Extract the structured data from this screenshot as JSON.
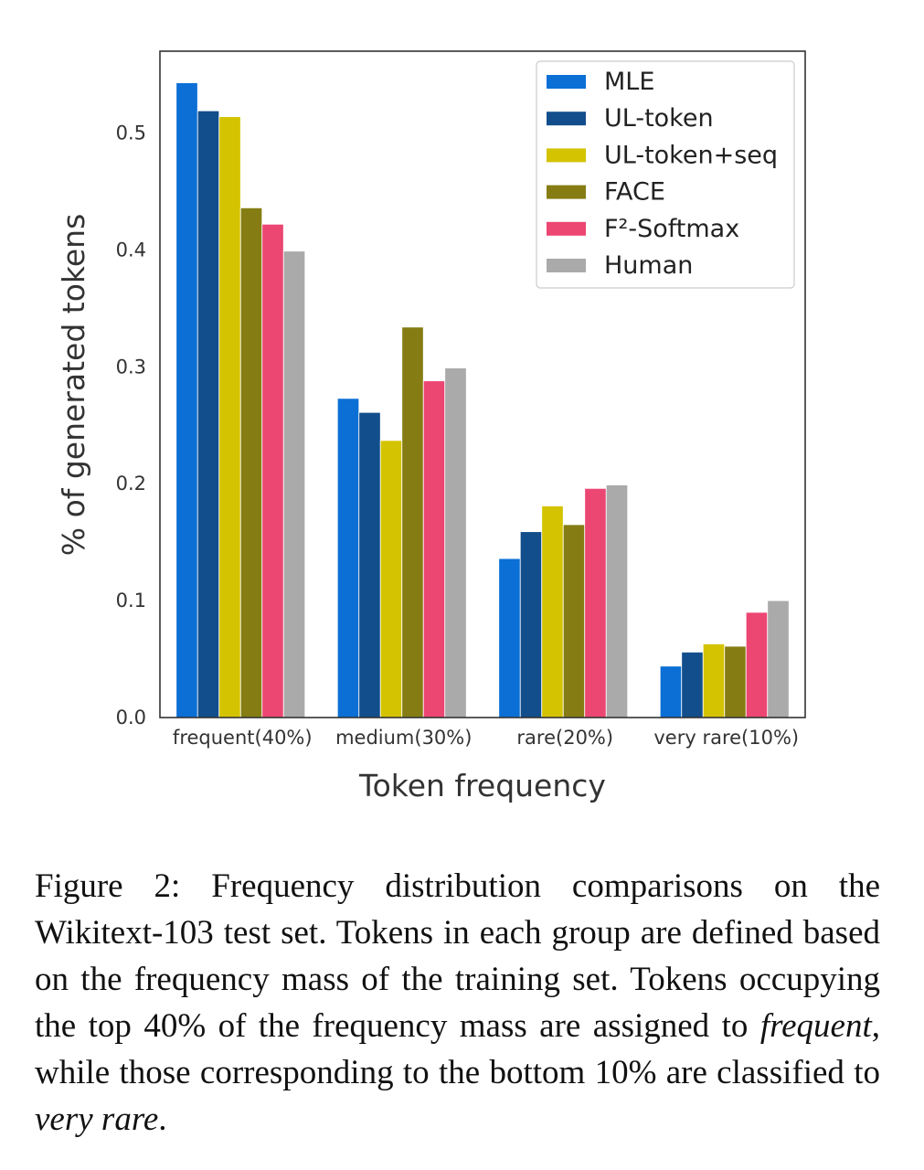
{
  "chart_data": {
    "type": "bar",
    "title": "",
    "xlabel": "Token frequency",
    "ylabel": "% of generated tokens",
    "categories": [
      "frequent(40%)",
      "medium(30%)",
      "rare(20%)",
      "very rare(10%)"
    ],
    "ylim": [
      0,
      0.57
    ],
    "yticks": [
      "0.0",
      "0.1",
      "0.2",
      "0.3",
      "0.4",
      "0.5"
    ],
    "grid": false,
    "legend_position": "top-right",
    "series": [
      {
        "name": "MLE",
        "color": "#0b6fd5",
        "values": [
          0.543,
          0.273,
          0.136,
          0.044
        ]
      },
      {
        "name": "UL-token",
        "color": "#134e8c",
        "values": [
          0.519,
          0.261,
          0.159,
          0.056
        ]
      },
      {
        "name": "UL-token+seq",
        "color": "#d4c300",
        "values": [
          0.514,
          0.237,
          0.181,
          0.063
        ]
      },
      {
        "name": "FACE",
        "color": "#857d14",
        "values": [
          0.436,
          0.334,
          0.165,
          0.061
        ]
      },
      {
        "name": "F²-Softmax",
        "color": "#ec4672",
        "values": [
          0.422,
          0.288,
          0.196,
          0.09
        ]
      },
      {
        "name": "Human",
        "color": "#aaaaaa",
        "values": [
          0.399,
          0.299,
          0.199,
          0.1
        ]
      }
    ]
  },
  "caption": {
    "label": "Figure 2:",
    "text_1": "Frequency distribution comparisons on the Wikitext-103 test set. Tokens in each group are defined based on the frequency mass of the training set. Tokens occupying the top 40% of the frequency mass are assigned to",
    "emph_1": "frequent",
    "text_2": ", while those corresponding to the bottom 10% are classified to",
    "emph_2": "very rare",
    "text_3": "."
  }
}
